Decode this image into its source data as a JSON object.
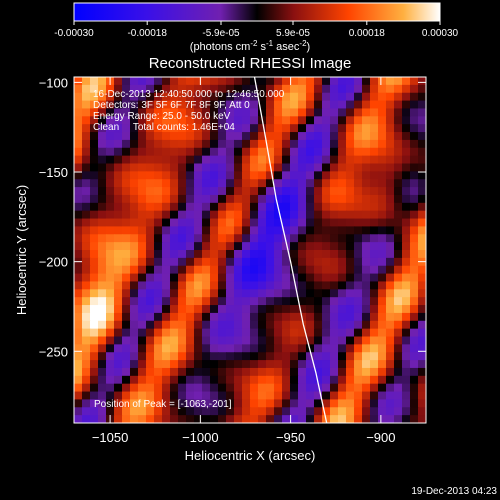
{
  "chart_data": {
    "type": "heatmap",
    "title": "Reconstructed RHESSI Image",
    "xlabel": "Heliocentric X (arcsec)",
    "ylabel": "Heliocentric Y (arcsec)",
    "xlim": [
      -1070,
      -875
    ],
    "ylim": [
      -290,
      -97
    ],
    "x_ticks": [
      -1050,
      -1000,
      -950,
      -900
    ],
    "y_ticks": [
      -100,
      -150,
      -200,
      -250
    ],
    "x_tick_labels": [
      "−1050",
      "−1000",
      "−950",
      "−900"
    ],
    "y_tick_labels": [
      "−100",
      "−150",
      "−200",
      "−250"
    ],
    "colorbar": {
      "range": [
        -0.0003,
        0.0003
      ],
      "ticks": [
        -0.0003,
        -0.00018,
        -5.9e-05,
        5.9e-05,
        0.00018,
        0.0003
      ],
      "tick_labels": [
        "-0.00030",
        "-0.00018",
        "-5.9e-05",
        "5.9e-05",
        "0.00018",
        "0.00030"
      ],
      "units_label": "(photons cm",
      "units_exp1": "-2",
      "units_mid": " s",
      "units_exp2": "-1",
      "units_tail": " asec",
      "units_exp3": "-2",
      "units_close": ")"
    },
    "annotations": [
      "16-Dec-2013 12:40:50.000 to 12:46:50.000",
      "Detectors: 3F 5F 6F 7F 8F 9F, Att 0",
      "Energy Range: 25.0 - 50.0 keV",
      "Clean     Total counts: 1.46E+04"
    ],
    "peak_label": "Position of Peak = [-1063,-201]",
    "peak": [
      -1063,
      -201
    ],
    "limb_curve": [
      [
        -970,
        -97
      ],
      [
        -964,
        -130
      ],
      [
        -958,
        -165
      ],
      [
        -950,
        -200
      ],
      [
        -943,
        -235
      ],
      [
        -936,
        -262
      ],
      [
        -930,
        -290
      ]
    ],
    "colors": [
      "#0000ff",
      "#6a20d0",
      "#b8342c",
      "#ff6600",
      "#ffc040",
      "#ffffff"
    ]
  },
  "footer": {
    "date": "19-Dec-2013 04:23"
  }
}
